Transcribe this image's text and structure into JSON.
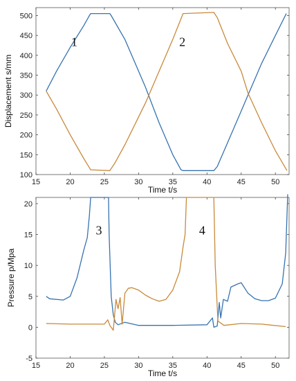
{
  "chart_data": [
    {
      "type": "line",
      "xlabel": "Time t/s",
      "ylabel": "Displacement s/mm",
      "xlim": [
        15,
        52
      ],
      "ylim": [
        100,
        520
      ],
      "xticks": [
        15,
        20,
        25,
        30,
        35,
        40,
        45,
        50
      ],
      "yticks": [
        100,
        150,
        200,
        250,
        300,
        350,
        400,
        450,
        500
      ],
      "grid": false,
      "annotations": [
        {
          "text": "1",
          "x": 20.6,
          "y": 423
        },
        {
          "text": "2",
          "x": 36.4,
          "y": 423
        }
      ],
      "series": [
        {
          "color": "#3572b0",
          "points": [
            [
              16.5,
              310
            ],
            [
              18,
              360
            ],
            [
              20,
              420
            ],
            [
              22,
              475
            ],
            [
              22.8,
              500
            ],
            [
              23,
              505
            ],
            [
              25.8,
              505
            ],
            [
              26,
              500
            ],
            [
              28,
              440
            ],
            [
              30,
              360
            ],
            [
              31,
              320
            ],
            [
              33,
              230
            ],
            [
              35,
              150
            ],
            [
              36.2,
              112
            ],
            [
              36.5,
              110
            ],
            [
              41,
              110
            ],
            [
              41.5,
              120
            ],
            [
              43,
              180
            ],
            [
              45,
              260
            ],
            [
              46,
              300
            ],
            [
              48,
              380
            ],
            [
              50,
              450
            ],
            [
              51.6,
              505
            ]
          ]
        },
        {
          "color": "#c8893a",
          "points": [
            [
              16.5,
              310
            ],
            [
              18,
              265
            ],
            [
              20,
              200
            ],
            [
              22,
              140
            ],
            [
              23,
              112
            ],
            [
              25.8,
              110
            ],
            [
              26.5,
              128
            ],
            [
              28,
              175
            ],
            [
              30,
              245
            ],
            [
              31,
              280
            ],
            [
              33,
              360
            ],
            [
              35,
              440
            ],
            [
              36.5,
              505
            ],
            [
              41,
              508
            ],
            [
              41.5,
              495
            ],
            [
              43,
              430
            ],
            [
              45,
              360
            ],
            [
              46,
              305
            ],
            [
              48,
              230
            ],
            [
              50,
              160
            ],
            [
              51.7,
              110
            ]
          ]
        }
      ]
    },
    {
      "type": "line",
      "xlabel": "Time t/s",
      "ylabel": "Pressure p/Mpa",
      "xlim": [
        15,
        52
      ],
      "ylim": [
        -5,
        21
      ],
      "xticks": [
        15,
        20,
        25,
        30,
        35,
        40,
        45,
        50
      ],
      "yticks": [
        -5,
        0,
        5,
        10,
        15,
        20
      ],
      "grid": false,
      "annotations": [
        {
          "text": "3",
          "x": 24.2,
          "y": 15
        },
        {
          "text": "4",
          "x": 39.3,
          "y": 15
        }
      ],
      "series": [
        {
          "color": "#3572b0",
          "points": [
            [
              16.5,
              5
            ],
            [
              17,
              4.6
            ],
            [
              19,
              4.4
            ],
            [
              20,
              5
            ],
            [
              21,
              8
            ],
            [
              22,
              12.5
            ],
            [
              22.5,
              14.5
            ],
            [
              22.8,
              18
            ],
            [
              23,
              21
            ],
            [
              25.6,
              21
            ],
            [
              25.7,
              15
            ],
            [
              26,
              5
            ],
            [
              26.3,
              2
            ],
            [
              26.6,
              0.8
            ],
            [
              27,
              0.4
            ],
            [
              28,
              0.8
            ],
            [
              30,
              0.3
            ],
            [
              35,
              0.3
            ],
            [
              40,
              0.4
            ],
            [
              40.8,
              1.5
            ],
            [
              41,
              0
            ],
            [
              41.5,
              0.2
            ],
            [
              41.8,
              4
            ],
            [
              42,
              1.5
            ],
            [
              42.4,
              4.5
            ],
            [
              43,
              4.2
            ],
            [
              43.5,
              6.5
            ],
            [
              44.5,
              7
            ],
            [
              45,
              7.2
            ],
            [
              46,
              5.5
            ],
            [
              47,
              4.6
            ],
            [
              48,
              4.3
            ],
            [
              49,
              4.3
            ],
            [
              50,
              4.7
            ],
            [
              51,
              7
            ],
            [
              51.5,
              12
            ],
            [
              51.8,
              21.5
            ]
          ]
        },
        {
          "color": "#c8893a",
          "points": [
            [
              16.5,
              0.6
            ],
            [
              20,
              0.5
            ],
            [
              25,
              0.5
            ],
            [
              25.5,
              1.2
            ],
            [
              25.8,
              0.3
            ],
            [
              26.3,
              -0.5
            ],
            [
              26.7,
              4.5
            ],
            [
              27,
              3
            ],
            [
              27.3,
              4.8
            ],
            [
              27.6,
              0.5
            ],
            [
              28,
              5.5
            ],
            [
              28.5,
              6.3
            ],
            [
              29,
              6.4
            ],
            [
              30,
              6
            ],
            [
              31,
              5.2
            ],
            [
              32,
              4.6
            ],
            [
              33,
              4.2
            ],
            [
              34,
              4.5
            ],
            [
              35,
              6
            ],
            [
              36,
              9
            ],
            [
              36.5,
              13
            ],
            [
              36.8,
              15
            ],
            [
              37,
              21
            ],
            [
              41,
              21
            ],
            [
              41.2,
              10
            ],
            [
              41.6,
              1
            ],
            [
              42.5,
              0.3
            ],
            [
              45,
              0.6
            ],
            [
              48,
              0.5
            ],
            [
              51.5,
              0.1
            ]
          ]
        }
      ]
    }
  ]
}
